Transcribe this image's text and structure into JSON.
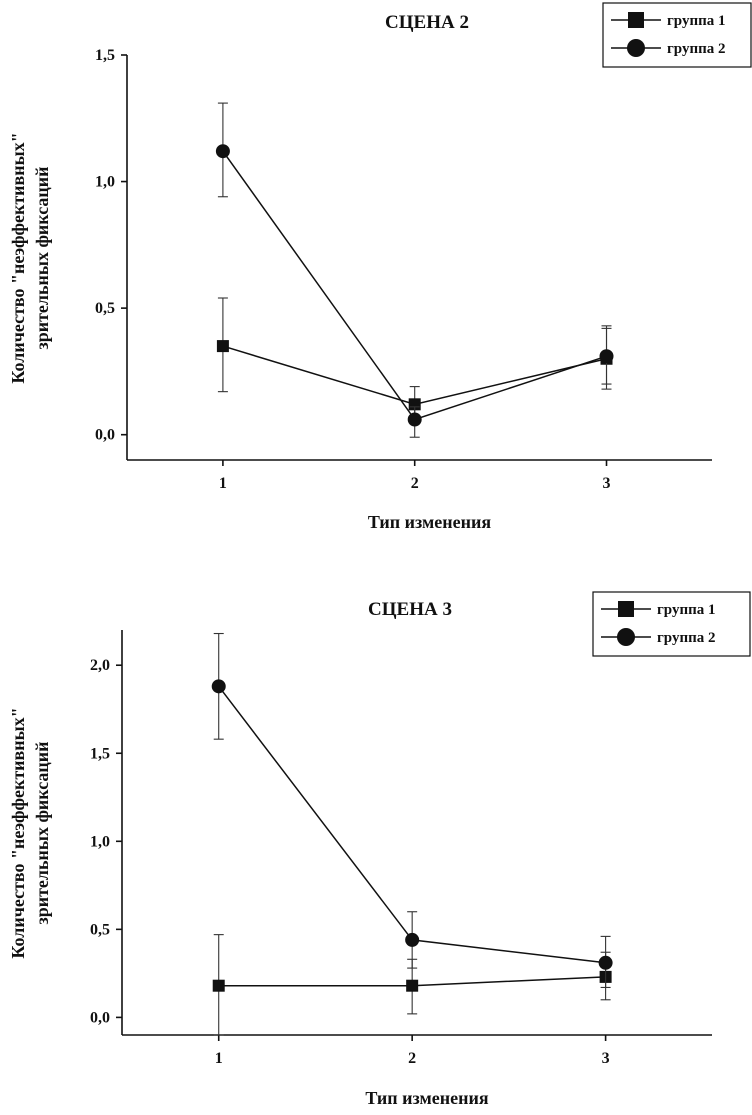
{
  "chart_data": [
    {
      "type": "line",
      "title": "СЦЕНА 2",
      "xlabel": "Тип изменения",
      "ylabel_lines": [
        "Количество \"неэффективных\"",
        "зрительных фиксаций"
      ],
      "x": [
        1,
        2,
        3
      ],
      "x_ticks": [
        "1",
        "2",
        "3"
      ],
      "xlim": [
        0.5,
        3.55
      ],
      "ylim": [
        -0.1,
        1.5
      ],
      "y_ticks": [
        "0,0",
        "0,5",
        "1,0",
        "1,5"
      ],
      "y_tick_values": [
        0,
        0.5,
        1.0,
        1.5
      ],
      "grid": false,
      "legend_position": "top-right",
      "series": [
        {
          "name": "группа 1",
          "marker": "square",
          "values": [
            0.35,
            0.12,
            0.3
          ],
          "err_low": [
            0.17,
            0.07,
            0.18
          ],
          "err_high": [
            0.54,
            0.19,
            0.43
          ]
        },
        {
          "name": "группа 2",
          "marker": "circle",
          "values": [
            1.12,
            0.06,
            0.31
          ],
          "err_low": [
            0.94,
            -0.01,
            0.2
          ],
          "err_high": [
            1.31,
            0.11,
            0.42
          ]
        }
      ]
    },
    {
      "type": "line",
      "title": "СЦЕНА 3",
      "xlabel": "Тип изменения",
      "ylabel_lines": [
        "Количество \"неэффективных\"",
        "зрительных фиксаций"
      ],
      "x": [
        1,
        2,
        3
      ],
      "x_ticks": [
        "1",
        "2",
        "3"
      ],
      "xlim": [
        0.5,
        3.55
      ],
      "ylim": [
        -0.1,
        2.2
      ],
      "y_ticks": [
        "0,0",
        "0,5",
        "1,0",
        "1,5",
        "2,0"
      ],
      "y_tick_values": [
        0,
        0.5,
        1.0,
        1.5,
        2.0
      ],
      "grid": false,
      "legend_position": "top-right",
      "series": [
        {
          "name": "группа 1",
          "marker": "square",
          "values": [
            0.18,
            0.18,
            0.23
          ],
          "err_low": [
            -0.1,
            0.02,
            0.1
          ],
          "err_high": [
            0.47,
            0.33,
            0.37
          ]
        },
        {
          "name": "группа 2",
          "marker": "circle",
          "values": [
            1.88,
            0.44,
            0.31
          ],
          "err_low": [
            1.58,
            0.28,
            0.17
          ],
          "err_high": [
            2.18,
            0.6,
            0.46
          ]
        }
      ]
    }
  ]
}
